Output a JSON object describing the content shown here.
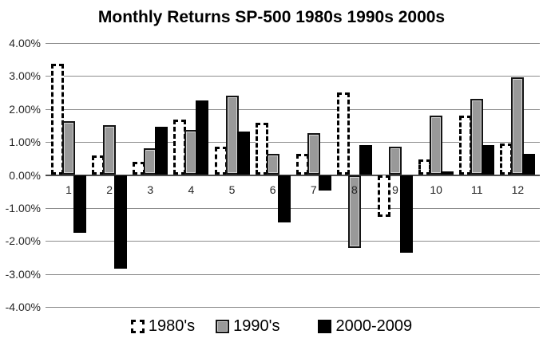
{
  "title": "Monthly Returns SP-500 1980s 1990s 2000s",
  "chart_data": {
    "type": "bar",
    "title": "Monthly Returns SP-500 1980s 1990s 2000s",
    "xlabel": "",
    "ylabel": "",
    "categories": [
      "1",
      "2",
      "3",
      "4",
      "5",
      "6",
      "7",
      "8",
      "9",
      "10",
      "11",
      "12"
    ],
    "series": [
      {
        "name": "1980's",
        "style": "dashed-outline",
        "fill": "#ffffff",
        "border": "#000000",
        "values": [
          3.38,
          0.6,
          0.4,
          1.69,
          0.86,
          1.58,
          0.65,
          2.51,
          -1.26,
          0.47,
          1.79,
          0.95
        ]
      },
      {
        "name": "1990's",
        "style": "solid",
        "fill": "#999999",
        "border": "#141414",
        "values": [
          1.62,
          1.52,
          0.81,
          1.37,
          2.4,
          0.63,
          1.27,
          -2.21,
          0.85,
          1.8,
          2.3,
          2.97
        ]
      },
      {
        "name": "2000-2009",
        "style": "solid",
        "fill": "#000000",
        "border": "#000000",
        "values": [
          -1.75,
          -2.85,
          1.46,
          2.27,
          1.32,
          -1.45,
          -0.46,
          0.91,
          -2.35,
          0.1,
          0.9,
          0.64
        ]
      }
    ],
    "ylim": [
      -4,
      4
    ],
    "ytick_step": 1,
    "ytick_labels": [
      "4.00%",
      "3.00%",
      "2.00%",
      "1.00%",
      "0.00%",
      "-1.00%",
      "-2.00%",
      "-3.00%",
      "-4.00%"
    ],
    "grid": true,
    "legend_position": "bottom"
  }
}
